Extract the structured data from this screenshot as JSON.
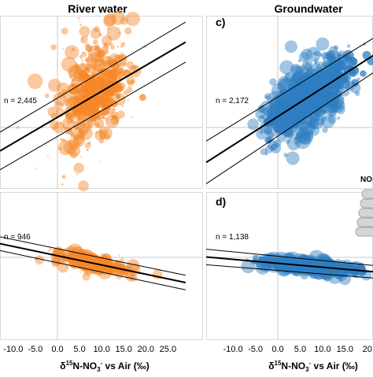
{
  "columns": {
    "river_title": "River water",
    "ground_title": "Groundwater"
  },
  "panel_labels": {
    "c": "c)",
    "d": "d)"
  },
  "legend_fragment": "NO",
  "xaxis": {
    "label_prefix": "δ",
    "label_mass": "15",
    "label_mid": "N-NO",
    "label_sub": "3",
    "label_sup": "-",
    "label_suffix": " vs Air (‰)"
  },
  "colors": {
    "river": "#f5872a",
    "ground": "#2f7ec1",
    "grid": "#c9c9c9",
    "fit": "#000000"
  },
  "chart_data": [
    {
      "id": "river-top",
      "type": "scatter",
      "title": "River water",
      "n_label": "n = 2,445",
      "xlim": [
        -13,
        29
      ],
      "ylim": [
        -9,
        23
      ],
      "xticks": [],
      "point_count": 2445,
      "fit": {
        "slope": 0.38,
        "intercept": 1.5
      },
      "grid": true
    },
    {
      "id": "ground-top",
      "type": "scatter",
      "title": "Groundwater",
      "panel_label": "c)",
      "n_label": "n = 2,172",
      "xlim": [
        -16,
        22
      ],
      "ylim": [
        -9,
        23
      ],
      "xticks": [],
      "point_count": 2172,
      "fit": {
        "slope": 0.42,
        "intercept": 1.6
      },
      "grid": true
    },
    {
      "id": "river-bottom",
      "type": "scatter",
      "n_label": "n = 946",
      "xlim": [
        -13,
        29
      ],
      "ylim": [
        -25,
        10
      ],
      "xticks": [
        "-10.0",
        "-5.0",
        "0.0",
        "5.0",
        "10.0",
        "15.0",
        "20.0",
        "25.0"
      ],
      "xtick_values": [
        -10,
        -5,
        0,
        5,
        10,
        15,
        20,
        25
      ],
      "point_count": 946,
      "fit": {
        "slope": -0.28,
        "intercept": 0.5
      },
      "grid": true
    },
    {
      "id": "ground-bottom",
      "type": "scatter",
      "panel_label": "d)",
      "n_label": "n = 1,138",
      "xlim": [
        -16,
        22
      ],
      "ylim": [
        -25,
        10
      ],
      "xticks": [
        "-10.0",
        "-5.0",
        "0.0",
        "5.0",
        "10.0",
        "15.0",
        "20"
      ],
      "xtick_values": [
        -10,
        -5,
        0,
        5,
        10,
        15,
        20
      ],
      "point_count": 1138,
      "fit": {
        "slope": -0.12,
        "intercept": -1.8
      },
      "grid": true
    }
  ]
}
